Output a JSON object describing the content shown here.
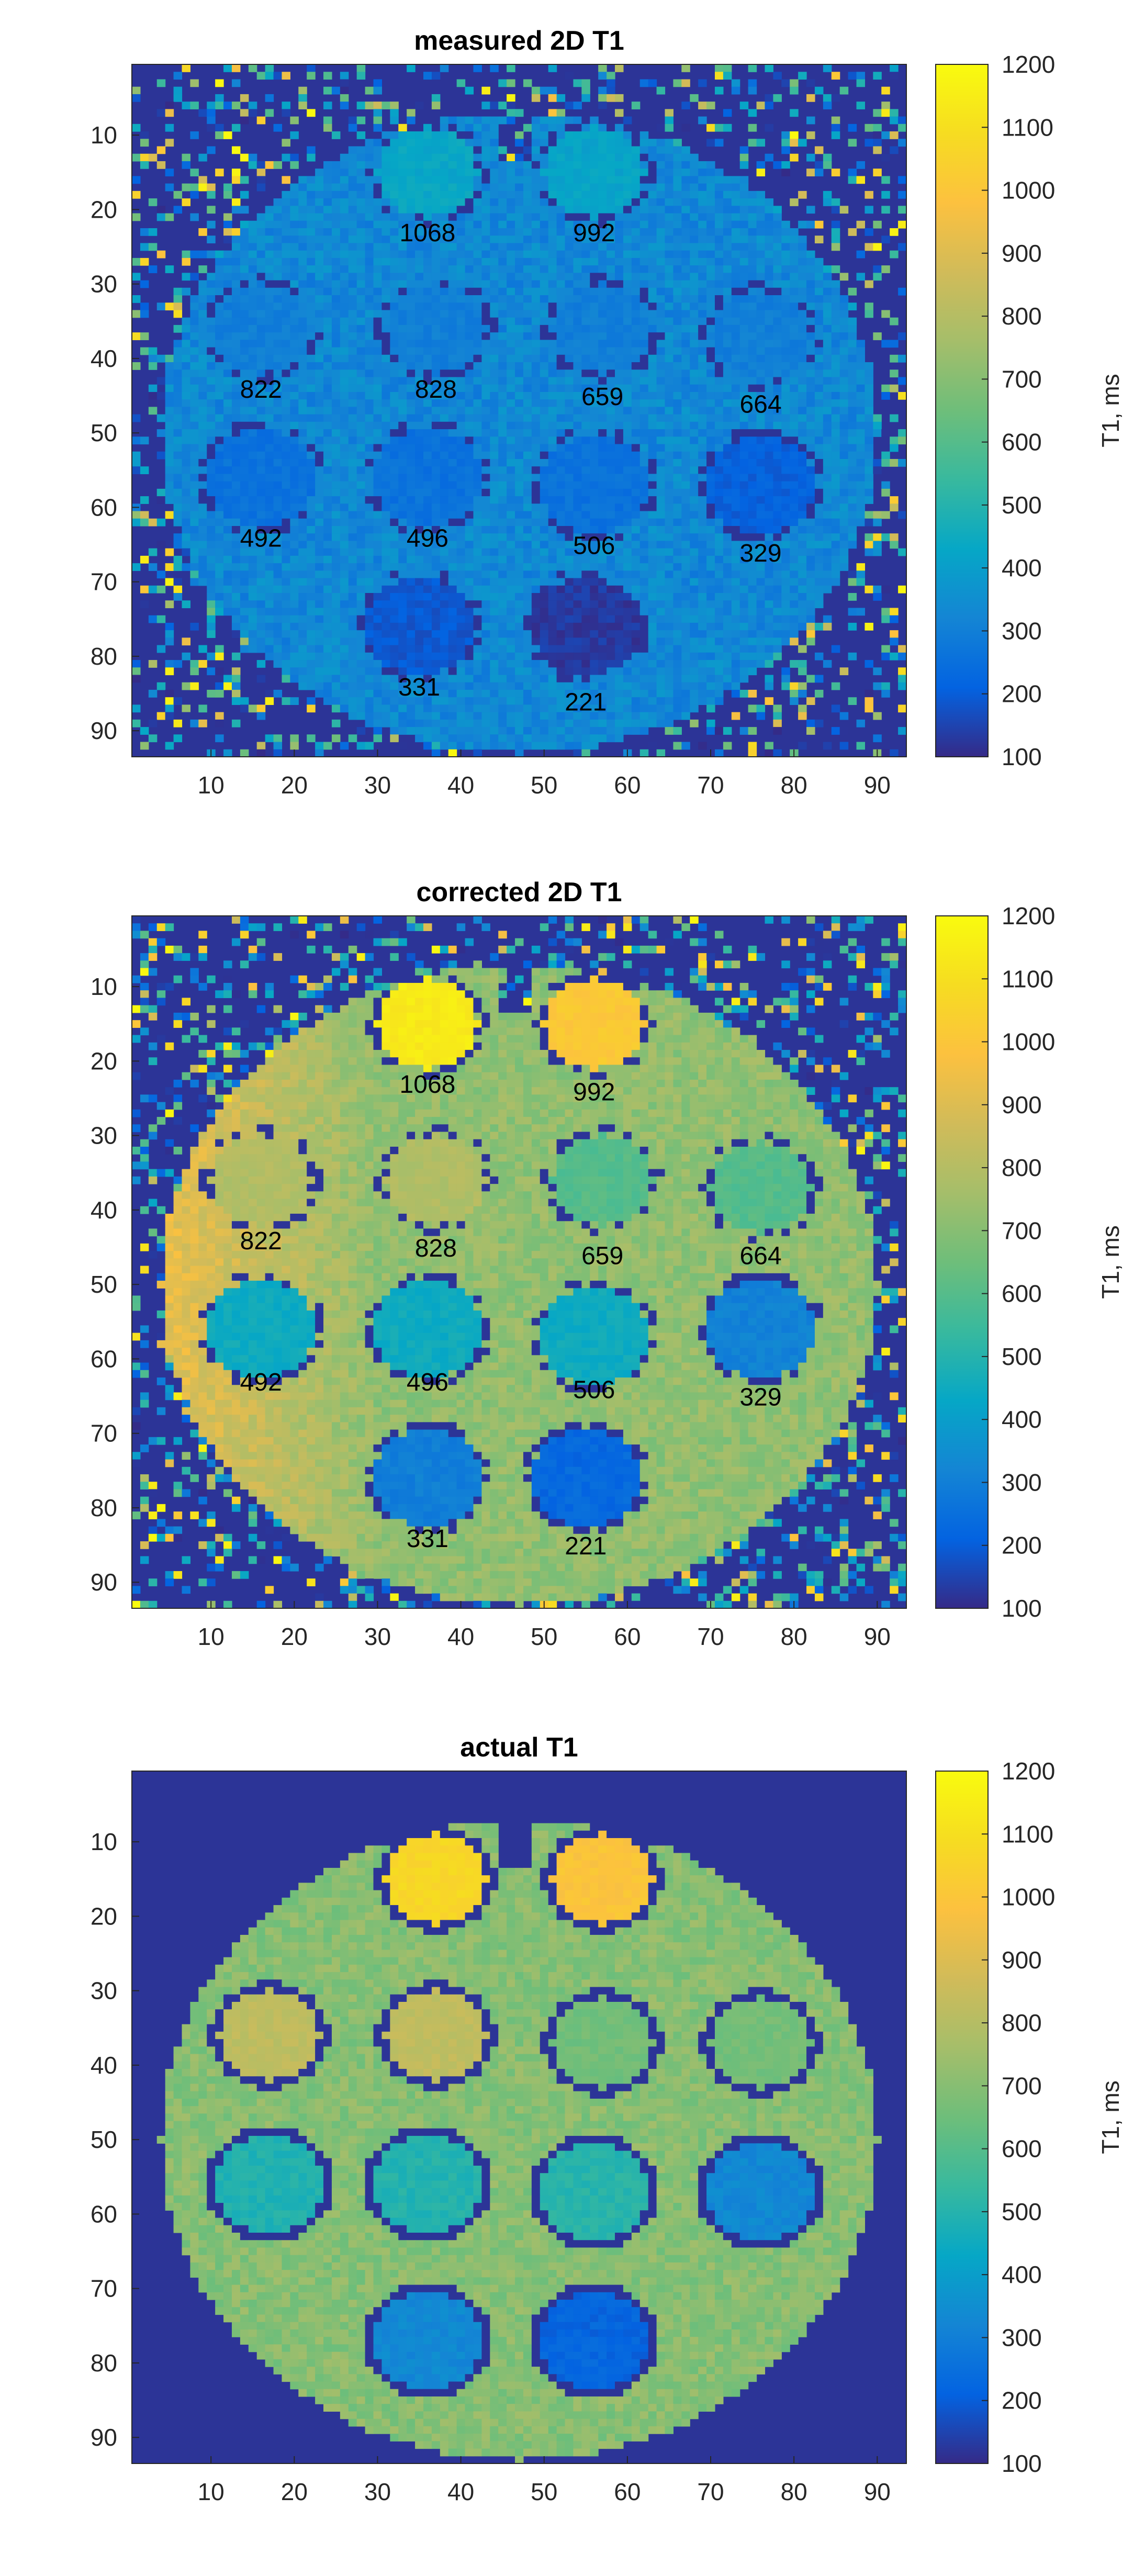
{
  "chart_data": [
    {
      "type": "heatmap",
      "id": "measured",
      "title": "measured 2D T1",
      "xlim": [
        0.5,
        93.5
      ],
      "ylim": [
        0.5,
        93.5
      ],
      "x_ticks": [
        10,
        20,
        30,
        40,
        50,
        60,
        70,
        80,
        90
      ],
      "y_ticks": [
        10,
        20,
        30,
        40,
        50,
        60,
        70,
        80,
        90
      ],
      "colormap": "parula",
      "clim": [
        100,
        1200
      ],
      "colorbar_ticks": [
        100,
        200,
        300,
        400,
        500,
        600,
        700,
        800,
        900,
        1000,
        1100,
        1200
      ],
      "colorbar_label": "T1, ms",
      "background_value": 120,
      "noise_pixels": true,
      "phantom_body_value": 330,
      "phantom_center": [
        47,
        50
      ],
      "phantom_radius": 43,
      "vials": [
        {
          "cx": 36,
          "cy": 15,
          "r": 6,
          "value": 430,
          "label": "1068",
          "label_y": 23
        },
        {
          "cx": 56,
          "cy": 15,
          "r": 6,
          "value": 420,
          "label": "992",
          "label_y": 23
        },
        {
          "cx": 16,
          "cy": 36,
          "r": 6,
          "value": 300,
          "label": "822",
          "label_y": 44
        },
        {
          "cx": 37,
          "cy": 36,
          "r": 6,
          "value": 300,
          "label": "828",
          "label_y": 44
        },
        {
          "cx": 57,
          "cy": 36,
          "r": 6,
          "value": 300,
          "label": "659",
          "label_y": 45
        },
        {
          "cx": 76,
          "cy": 37,
          "r": 6,
          "value": 300,
          "label": "664",
          "label_y": 46
        },
        {
          "cx": 16,
          "cy": 56,
          "r": 6.5,
          "value": 260,
          "label": "492",
          "label_y": 64
        },
        {
          "cx": 36,
          "cy": 56,
          "r": 6.5,
          "value": 260,
          "label": "496",
          "label_y": 64
        },
        {
          "cx": 56,
          "cy": 57,
          "r": 6.5,
          "value": 260,
          "label": "506",
          "label_y": 65
        },
        {
          "cx": 76,
          "cy": 57,
          "r": 6.5,
          "value": 210,
          "label": "329",
          "label_y": 66
        },
        {
          "cx": 35,
          "cy": 76,
          "r": 6.5,
          "value": 190,
          "label": "331",
          "label_y": 84
        },
        {
          "cx": 55,
          "cy": 76,
          "r": 6.5,
          "value": 130,
          "label": "221",
          "label_y": 86
        }
      ]
    },
    {
      "type": "heatmap",
      "id": "corrected",
      "title": "corrected 2D T1",
      "xlim": [
        0.5,
        93.5
      ],
      "ylim": [
        0.5,
        93.5
      ],
      "x_ticks": [
        10,
        20,
        30,
        40,
        50,
        60,
        70,
        80,
        90
      ],
      "y_ticks": [
        10,
        20,
        30,
        40,
        50,
        60,
        70,
        80,
        90
      ],
      "colormap": "parula",
      "clim": [
        100,
        1200
      ],
      "colorbar_ticks": [
        100,
        200,
        300,
        400,
        500,
        600,
        700,
        800,
        900,
        1000,
        1100,
        1200
      ],
      "colorbar_label": "T1, ms",
      "background_value": 120,
      "noise_pixels": true,
      "phantom_body_value": 720,
      "phantom_left_boost": 980,
      "phantom_center": [
        47,
        50
      ],
      "phantom_radius": 43,
      "vials": [
        {
          "cx": 36,
          "cy": 15,
          "r": 6,
          "value": 1140,
          "label": "1068",
          "label_y": 23
        },
        {
          "cx": 56,
          "cy": 15,
          "r": 6,
          "value": 1010,
          "label": "992",
          "label_y": 24
        },
        {
          "cx": 16,
          "cy": 36,
          "r": 6,
          "value": 790,
          "label": "822",
          "label_y": 44
        },
        {
          "cx": 37,
          "cy": 36,
          "r": 6,
          "value": 790,
          "label": "828",
          "label_y": 45
        },
        {
          "cx": 57,
          "cy": 36,
          "r": 6,
          "value": 600,
          "label": "659",
          "label_y": 46
        },
        {
          "cx": 76,
          "cy": 37,
          "r": 6,
          "value": 600,
          "label": "664",
          "label_y": 46
        },
        {
          "cx": 16,
          "cy": 56,
          "r": 6.5,
          "value": 450,
          "label": "492",
          "label_y": 63
        },
        {
          "cx": 36,
          "cy": 56,
          "r": 6.5,
          "value": 450,
          "label": "496",
          "label_y": 63
        },
        {
          "cx": 56,
          "cy": 57,
          "r": 6.5,
          "value": 450,
          "label": "506",
          "label_y": 64
        },
        {
          "cx": 76,
          "cy": 56,
          "r": 6.5,
          "value": 310,
          "label": "329",
          "label_y": 65
        },
        {
          "cx": 36,
          "cy": 76,
          "r": 6.5,
          "value": 300,
          "label": "331",
          "label_y": 84
        },
        {
          "cx": 55,
          "cy": 76,
          "r": 6.5,
          "value": 230,
          "label": "221",
          "label_y": 85
        }
      ]
    },
    {
      "type": "heatmap",
      "id": "actual",
      "title": "actual T1",
      "xlim": [
        0.5,
        93.5
      ],
      "ylim": [
        0.5,
        93.5
      ],
      "x_ticks": [
        10,
        20,
        30,
        40,
        50,
        60,
        70,
        80,
        90
      ],
      "y_ticks": [
        10,
        20,
        30,
        40,
        50,
        60,
        70,
        80,
        90
      ],
      "colormap": "parula",
      "clim": [
        100,
        1200
      ],
      "colorbar_ticks": [
        100,
        200,
        300,
        400,
        500,
        600,
        700,
        800,
        900,
        1000,
        1100,
        1200
      ],
      "colorbar_label": "T1, ms",
      "background_value": 120,
      "noise_pixels": false,
      "phantom_body_value": 700,
      "phantom_center": [
        47,
        50
      ],
      "phantom_radius": 43,
      "vials": [
        {
          "cx": 37,
          "cy": 15,
          "r": 6,
          "value": 1068,
          "label": "",
          "label_y": 0
        },
        {
          "cx": 57,
          "cy": 15,
          "r": 6,
          "value": 992,
          "label": "",
          "label_y": 0
        },
        {
          "cx": 17,
          "cy": 36,
          "r": 6,
          "value": 822,
          "label": "",
          "label_y": 0
        },
        {
          "cx": 37,
          "cy": 36,
          "r": 6,
          "value": 828,
          "label": "",
          "label_y": 0
        },
        {
          "cx": 57,
          "cy": 37,
          "r": 6,
          "value": 659,
          "label": "",
          "label_y": 0
        },
        {
          "cx": 76,
          "cy": 37,
          "r": 6,
          "value": 664,
          "label": "",
          "label_y": 0
        },
        {
          "cx": 17,
          "cy": 56,
          "r": 6.5,
          "value": 492,
          "label": "",
          "label_y": 0
        },
        {
          "cx": 36,
          "cy": 56,
          "r": 6.5,
          "value": 496,
          "label": "",
          "label_y": 0
        },
        {
          "cx": 56,
          "cy": 57,
          "r": 6.5,
          "value": 506,
          "label": "",
          "label_y": 0
        },
        {
          "cx": 76,
          "cy": 57,
          "r": 6.5,
          "value": 329,
          "label": "",
          "label_y": 0
        },
        {
          "cx": 36,
          "cy": 77,
          "r": 6.5,
          "value": 331,
          "label": "",
          "label_y": 0
        },
        {
          "cx": 56,
          "cy": 77,
          "r": 6.5,
          "value": 221,
          "label": "",
          "label_y": 0
        }
      ]
    }
  ]
}
